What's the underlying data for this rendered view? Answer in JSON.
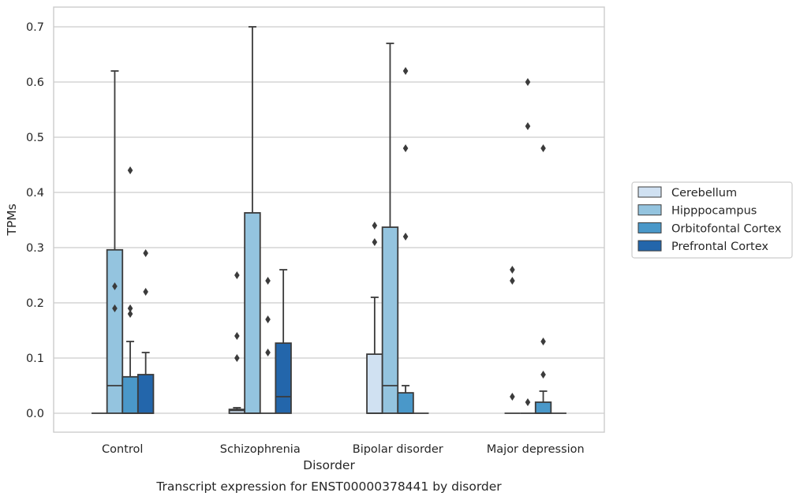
{
  "chart_data": {
    "type": "box",
    "title": "",
    "caption": "Transcript expression for ENST00000378441 by disorder",
    "xlabel": "Disorder",
    "ylabel": "TPMs",
    "ylim": [
      -0.035,
      0.735
    ],
    "yticks": [
      "0.0",
      "0.1",
      "0.2",
      "0.3",
      "0.4",
      "0.5",
      "0.6",
      "0.7"
    ],
    "grid": "horizontal",
    "legend_position": "right",
    "categories": [
      "Control",
      "Schizophrenia",
      "Bipolar disorder",
      "Major depression"
    ],
    "series": [
      {
        "name": "Cerebellum",
        "color": "#d0e1f2",
        "boxes": [
          {
            "q1": 0,
            "median": 0,
            "q3": 0,
            "whislo": 0,
            "whishi": 0,
            "fliers": []
          },
          {
            "q1": 0,
            "median": 0.005,
            "q3": 0.007,
            "whislo": 0,
            "whishi": 0.01,
            "fliers": [
              0.1,
              0.14,
              0.25
            ]
          },
          {
            "q1": 0,
            "median": 0,
            "q3": 0.107,
            "whislo": 0,
            "whishi": 0.21,
            "fliers": [
              0.31,
              0.34
            ]
          },
          {
            "q1": 0,
            "median": 0,
            "q3": 0,
            "whislo": 0,
            "whishi": 0,
            "fliers": [
              0.03,
              0.24,
              0.26
            ]
          }
        ]
      },
      {
        "name": "Hipppocampus",
        "color": "#94c4df",
        "boxes": [
          {
            "q1": 0,
            "median": 0.05,
            "q3": 0.296,
            "whislo": 0,
            "whishi": 0.62,
            "fliers": [
              0.19,
              0.23
            ]
          },
          {
            "q1": 0,
            "median": 0,
            "q3": 0.363,
            "whislo": 0,
            "whishi": 0.7,
            "fliers": []
          },
          {
            "q1": 0,
            "median": 0.05,
            "q3": 0.337,
            "whislo": 0,
            "whishi": 0.67,
            "fliers": []
          },
          {
            "q1": 0,
            "median": 0,
            "q3": 0,
            "whislo": 0,
            "whishi": 0,
            "fliers": [
              0.02,
              0.52,
              0.6
            ]
          }
        ]
      },
      {
        "name": "Orbitofontal Cortex",
        "color": "#4a98c9",
        "boxes": [
          {
            "q1": 0,
            "median": 0,
            "q3": 0.066,
            "whislo": 0,
            "whishi": 0.13,
            "fliers": [
              0.18,
              0.19,
              0.44
            ]
          },
          {
            "q1": 0,
            "median": 0,
            "q3": 0,
            "whislo": 0,
            "whishi": 0,
            "fliers": [
              0.11,
              0.17,
              0.24
            ]
          },
          {
            "q1": 0,
            "median": 0,
            "q3": 0.037,
            "whislo": 0,
            "whishi": 0.05,
            "fliers": [
              0.32,
              0.48,
              0.62
            ]
          },
          {
            "q1": 0,
            "median": 0,
            "q3": 0.02,
            "whislo": 0,
            "whishi": 0.04,
            "fliers": [
              0.07,
              0.13,
              0.48
            ]
          }
        ]
      },
      {
        "name": "Prefrontal Cortex",
        "color": "#2366ab",
        "boxes": [
          {
            "q1": 0,
            "median": 0,
            "q3": 0.07,
            "whislo": 0,
            "whishi": 0.11,
            "fliers": [
              0.22,
              0.29
            ]
          },
          {
            "q1": 0,
            "median": 0.03,
            "q3": 0.127,
            "whislo": 0,
            "whishi": 0.26,
            "fliers": []
          },
          {
            "q1": 0,
            "median": 0,
            "q3": 0,
            "whislo": 0,
            "whishi": 0,
            "fliers": []
          },
          {
            "q1": 0,
            "median": 0,
            "q3": 0,
            "whislo": 0,
            "whishi": 0,
            "fliers": []
          }
        ]
      }
    ]
  }
}
